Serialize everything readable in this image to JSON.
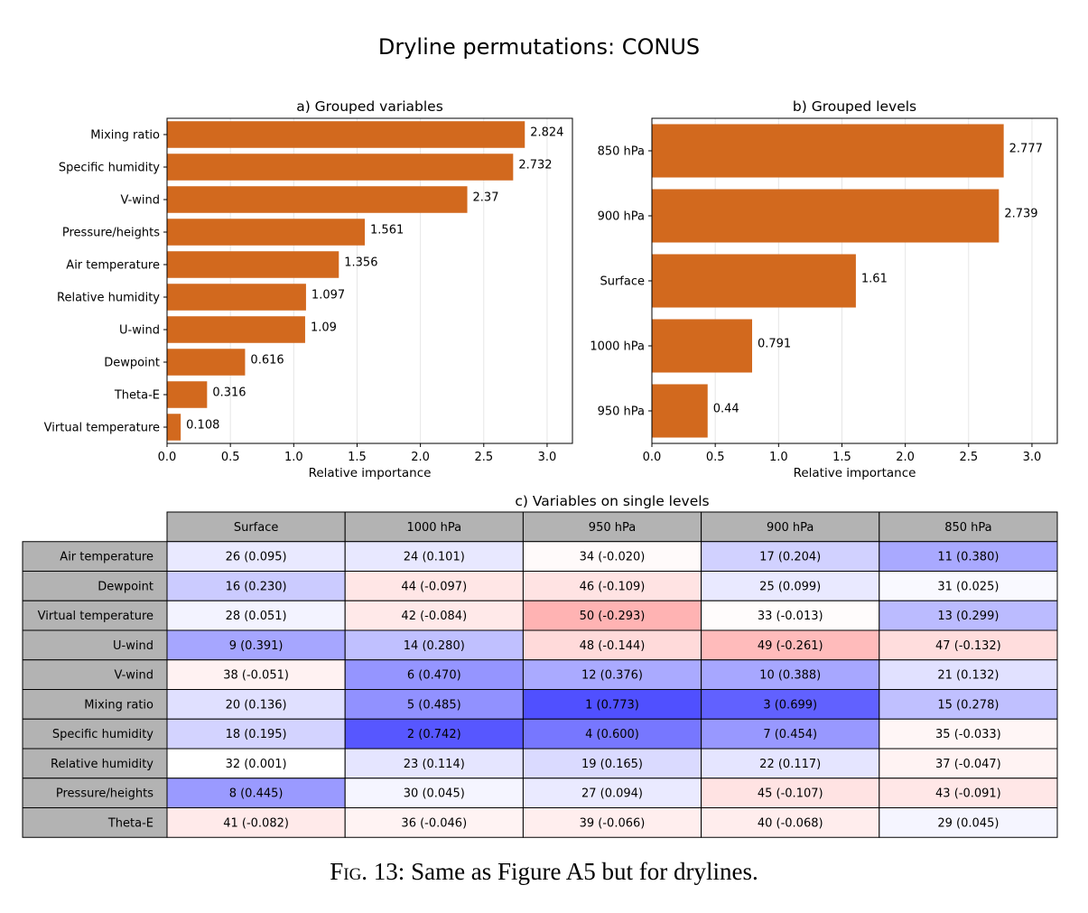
{
  "figure": {
    "suptitle": "Dryline permutations: CONUS",
    "caption_label": "Fig. 13:",
    "caption_text": "Same as Figure A5 but for drylines."
  },
  "chart_data": [
    {
      "type": "bar",
      "orientation": "horizontal",
      "title": "a) Grouped variables",
      "xlabel": "Relative importance",
      "ylabel": "",
      "xlim": [
        0,
        3.2
      ],
      "xticks": [
        "0.0",
        "0.5",
        "1.0",
        "1.5",
        "2.0",
        "2.5",
        "3.0"
      ],
      "grid": "vertical",
      "color": "#d2691e",
      "categories": [
        "Mixing ratio",
        "Specific humidity",
        "V-wind",
        "Pressure/heights",
        "Air temperature",
        "Relative humidity",
        "U-wind",
        "Dewpoint",
        "Theta-E",
        "Virtual temperature"
      ],
      "values": [
        2.824,
        2.732,
        2.37,
        1.561,
        1.356,
        1.097,
        1.09,
        0.616,
        0.316,
        0.108
      ],
      "value_labels": [
        "2.824",
        "2.732",
        "2.37",
        "1.561",
        "1.356",
        "1.097",
        "1.09",
        "0.616",
        "0.316",
        "0.108"
      ]
    },
    {
      "type": "bar",
      "orientation": "horizontal",
      "title": "b) Grouped levels",
      "xlabel": "Relative importance",
      "ylabel": "",
      "xlim": [
        0,
        3.2
      ],
      "xticks": [
        "0.0",
        "0.5",
        "1.0",
        "1.5",
        "2.0",
        "2.5",
        "3.0"
      ],
      "grid": "vertical",
      "color": "#d2691e",
      "categories": [
        "850 hPa",
        "900 hPa",
        "Surface",
        "1000 hPa",
        "950 hPa"
      ],
      "values": [
        2.777,
        2.739,
        1.61,
        0.791,
        0.44
      ],
      "value_labels": [
        "2.777",
        "2.739",
        "1.61",
        "0.791",
        "0.44"
      ]
    },
    {
      "type": "table",
      "title": "c) Variables on single levels",
      "columns": [
        "Surface",
        "1000 hPa",
        "950 hPa",
        "900 hPa",
        "850 hPa"
      ],
      "rows": [
        "Air temperature",
        "Dewpoint",
        "Virtual temperature",
        "U-wind",
        "V-wind",
        "Mixing ratio",
        "Specific humidity",
        "Relative humidity",
        "Pressure/heights",
        "Theta-E"
      ],
      "cells": [
        [
          {
            "rank": 26,
            "value": 0.095,
            "text": "26 (0.095)"
          },
          {
            "rank": 24,
            "value": 0.101,
            "text": "24 (0.101)"
          },
          {
            "rank": 34,
            "value": -0.02,
            "text": "34 (-0.020)"
          },
          {
            "rank": 17,
            "value": 0.204,
            "text": "17 (0.204)"
          },
          {
            "rank": 11,
            "value": 0.38,
            "text": "11 (0.380)"
          }
        ],
        [
          {
            "rank": 16,
            "value": 0.23,
            "text": "16 (0.230)"
          },
          {
            "rank": 44,
            "value": -0.097,
            "text": "44 (-0.097)"
          },
          {
            "rank": 46,
            "value": -0.109,
            "text": "46 (-0.109)"
          },
          {
            "rank": 25,
            "value": 0.099,
            "text": "25 (0.099)"
          },
          {
            "rank": 31,
            "value": 0.025,
            "text": "31 (0.025)"
          }
        ],
        [
          {
            "rank": 28,
            "value": 0.051,
            "text": "28 (0.051)"
          },
          {
            "rank": 42,
            "value": -0.084,
            "text": "42 (-0.084)"
          },
          {
            "rank": 50,
            "value": -0.293,
            "text": "50 (-0.293)"
          },
          {
            "rank": 33,
            "value": -0.013,
            "text": "33 (-0.013)"
          },
          {
            "rank": 13,
            "value": 0.299,
            "text": "13 (0.299)"
          }
        ],
        [
          {
            "rank": 9,
            "value": 0.391,
            "text": "9 (0.391)"
          },
          {
            "rank": 14,
            "value": 0.28,
            "text": "14 (0.280)"
          },
          {
            "rank": 48,
            "value": -0.144,
            "text": "48 (-0.144)"
          },
          {
            "rank": 49,
            "value": -0.261,
            "text": "49 (-0.261)"
          },
          {
            "rank": 47,
            "value": -0.132,
            "text": "47 (-0.132)"
          }
        ],
        [
          {
            "rank": 38,
            "value": -0.051,
            "text": "38 (-0.051)"
          },
          {
            "rank": 6,
            "value": 0.47,
            "text": "6 (0.470)"
          },
          {
            "rank": 12,
            "value": 0.376,
            "text": "12 (0.376)"
          },
          {
            "rank": 10,
            "value": 0.388,
            "text": "10 (0.388)"
          },
          {
            "rank": 21,
            "value": 0.132,
            "text": "21 (0.132)"
          }
        ],
        [
          {
            "rank": 20,
            "value": 0.136,
            "text": "20 (0.136)"
          },
          {
            "rank": 5,
            "value": 0.485,
            "text": "5 (0.485)"
          },
          {
            "rank": 1,
            "value": 0.773,
            "text": "1 (0.773)"
          },
          {
            "rank": 3,
            "value": 0.699,
            "text": "3 (0.699)"
          },
          {
            "rank": 15,
            "value": 0.278,
            "text": "15 (0.278)"
          }
        ],
        [
          {
            "rank": 18,
            "value": 0.195,
            "text": "18 (0.195)"
          },
          {
            "rank": 2,
            "value": 0.742,
            "text": "2 (0.742)"
          },
          {
            "rank": 4,
            "value": 0.6,
            "text": "4 (0.600)"
          },
          {
            "rank": 7,
            "value": 0.454,
            "text": "7 (0.454)"
          },
          {
            "rank": 35,
            "value": -0.033,
            "text": "35 (-0.033)"
          }
        ],
        [
          {
            "rank": 32,
            "value": 0.001,
            "text": "32 (0.001)"
          },
          {
            "rank": 23,
            "value": 0.114,
            "text": "23 (0.114)"
          },
          {
            "rank": 19,
            "value": 0.165,
            "text": "19 (0.165)"
          },
          {
            "rank": 22,
            "value": 0.117,
            "text": "22 (0.117)"
          },
          {
            "rank": 37,
            "value": -0.047,
            "text": "37 (-0.047)"
          }
        ],
        [
          {
            "rank": 8,
            "value": 0.445,
            "text": "8 (0.445)"
          },
          {
            "rank": 30,
            "value": 0.045,
            "text": "30 (0.045)"
          },
          {
            "rank": 27,
            "value": 0.094,
            "text": "27 (0.094)"
          },
          {
            "rank": 45,
            "value": -0.107,
            "text": "45 (-0.107)"
          },
          {
            "rank": 43,
            "value": -0.091,
            "text": "43 (-0.091)"
          }
        ],
        [
          {
            "rank": 41,
            "value": -0.082,
            "text": "41 (-0.082)"
          },
          {
            "rank": 36,
            "value": -0.046,
            "text": "36 (-0.046)"
          },
          {
            "rank": 39,
            "value": -0.066,
            "text": "39 (-0.066)"
          },
          {
            "rank": 40,
            "value": -0.068,
            "text": "40 (-0.068)"
          },
          {
            "rank": 29,
            "value": 0.045,
            "text": "29 (0.045)"
          }
        ]
      ],
      "colormap": {
        "positive": "#5050ff",
        "negative": "#ffb3b3",
        "zero": "#ffffff",
        "header": "#b3b3b3"
      }
    }
  ]
}
